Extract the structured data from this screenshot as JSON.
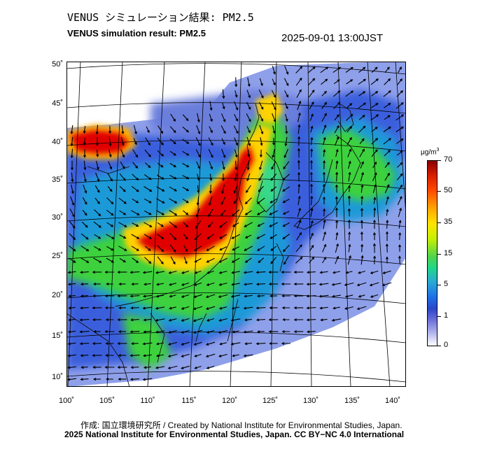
{
  "header": {
    "title_jp": "VENUS シミュレーション結果: PM2.5",
    "title_en": "VENUS simulation result: PM2.5",
    "timestamp": "2025-09-01 13:00JST"
  },
  "map": {
    "lat_labels": [
      "50˚",
      "45˚",
      "40˚",
      "35˚",
      "30˚",
      "25˚",
      "20˚",
      "15˚",
      "10˚"
    ],
    "lon_labels": [
      "100˚",
      "105˚",
      "110˚",
      "115˚",
      "120˚",
      "125˚",
      "130˚",
      "135˚",
      "140˚"
    ],
    "colors": {
      "high": "#e00000",
      "mid": "#ffd200",
      "low": "#3cd23c",
      "background": "#8fa0ea",
      "no_data": "#ffffff"
    }
  },
  "colorbar": {
    "unit": "μg/m",
    "unit_sup": "3",
    "ticks": [
      "70",
      "50",
      "35",
      "15",
      "5",
      "1",
      "0"
    ]
  },
  "footer": {
    "credit": "作成: 国立環境研究所 / Created by National Institute for Environmental Studies, Japan.",
    "copyright": "2025 National Institute for Environmental Studies, Japan. CC BY−NC 4.0 International"
  }
}
